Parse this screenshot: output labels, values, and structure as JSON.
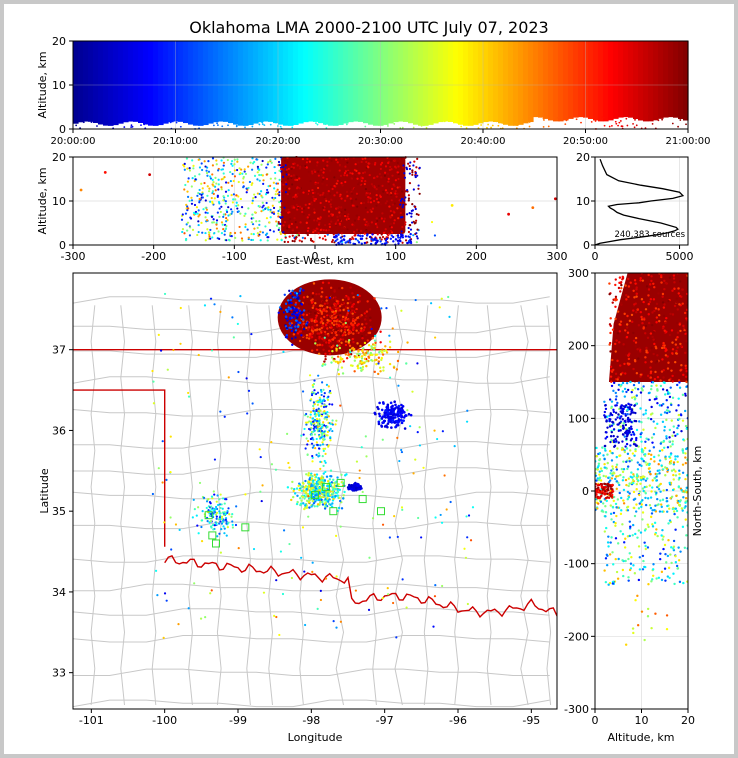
{
  "title": "Oklahoma LMA 2000-2100 UTC July 07, 2023",
  "colors": {
    "jet": [
      "#00008f",
      "#0000ff",
      "#0080ff",
      "#00ffff",
      "#80ff80",
      "#ffff00",
      "#ff8000",
      "#ff0000",
      "#800000"
    ],
    "border_state": "#cc0000",
    "border_county": "#c8c8c8",
    "grid": "#dddddd"
  },
  "chart_data": [
    {
      "type": "scatter",
      "id": "time-height",
      "xlabel": "",
      "ylabel": "Altitude, km",
      "xticks": [
        "20:00:00",
        "20:10:00",
        "20:20:00",
        "20:30:00",
        "20:40:00",
        "20:50:00",
        "21:00:00"
      ],
      "xlim_minutes": [
        0,
        60
      ],
      "ylim": [
        0,
        20
      ],
      "yticks": [
        0,
        10,
        20
      ],
      "color_by": "time"
    },
    {
      "type": "scatter",
      "id": "ew-altitude",
      "xlabel": "East-West, km",
      "ylabel": "Altitude, km",
      "xlim": [
        -300,
        300
      ],
      "xticks": [
        -300,
        -200,
        -100,
        0,
        100,
        200,
        300
      ],
      "ylim": [
        0,
        20
      ],
      "yticks": [
        0,
        10,
        20
      ],
      "color_by": "time"
    },
    {
      "type": "line",
      "id": "altitude-histogram",
      "annotation": "240,383 sources",
      "xlim": [
        0,
        5500
      ],
      "xticks": [
        0,
        5000
      ],
      "ylim": [
        0,
        20
      ],
      "yticks": [
        0,
        10,
        20
      ],
      "x": [
        0,
        300,
        900,
        1500,
        2300,
        3100,
        3800,
        4300,
        4700,
        4900,
        4800,
        3900,
        2600,
        1700,
        1300,
        1100,
        900,
        800,
        1300,
        2600,
        3300,
        4600,
        5200,
        5000,
        4000,
        2700,
        1400,
        700,
        450,
        300
      ],
      "y": [
        0,
        0.4,
        0.8,
        1.2,
        1.6,
        2.0,
        2.4,
        2.8,
        3.2,
        3.6,
        4.0,
        5.0,
        6.0,
        6.8,
        7.4,
        8.0,
        8.4,
        8.8,
        9.2,
        9.6,
        10.0,
        10.6,
        11.2,
        12.0,
        12.8,
        13.6,
        14.6,
        16.0,
        18.0,
        19.5
      ]
    },
    {
      "type": "scatter",
      "id": "plan-view",
      "xlabel": "Longitude",
      "ylabel": "Latitude",
      "xlim": [
        -101.25,
        -94.65
      ],
      "xticks": [
        -101,
        -100,
        -99,
        -98,
        -97,
        -96,
        -95
      ],
      "ylim": [
        32.55,
        37.95
      ],
      "yticks": [
        33,
        34,
        35,
        36,
        37
      ],
      "color_by": "time"
    },
    {
      "type": "scatter",
      "id": "altitude-ns",
      "xlabel": "Altitude, km",
      "ylabel": "North-South, km",
      "xlim": [
        0,
        20
      ],
      "xticks": [
        0,
        10,
        20
      ],
      "ylim": [
        -300,
        300
      ],
      "yticks": [
        -300,
        -200,
        -100,
        0,
        100,
        200,
        300
      ],
      "color_by": "time"
    }
  ]
}
